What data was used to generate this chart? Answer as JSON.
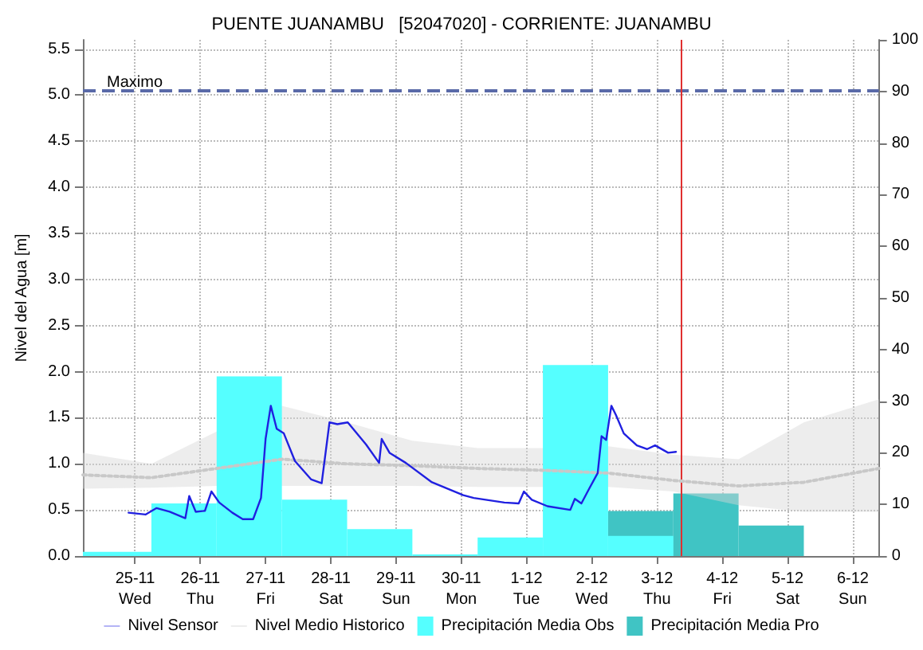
{
  "chart_data": {
    "type": "line",
    "title": "PUENTE JUANAMBU   [52047020] - CORRIENTE: JUANAMBU",
    "ylabel": "Nivel del Agua [m]",
    "xlim": [
      "--11-24T04:48",
      "--12-06T09:36"
    ],
    "xticks": [
      {
        "value": "--11-25",
        "label": "25-11\nWed"
      },
      {
        "value": "--11-26",
        "label": "26-11\nThu"
      },
      {
        "value": "--11-27",
        "label": "27-11\nFri"
      },
      {
        "value": "--11-28",
        "label": "28-11\nSat"
      },
      {
        "value": "--11-29",
        "label": "29-11\nSun"
      },
      {
        "value": "--11-30",
        "label": "30-11\nMon"
      },
      {
        "value": "--12-01",
        "label": "1-12\nTue"
      },
      {
        "value": "--12-02",
        "label": "2-12\nWed"
      },
      {
        "value": "--12-03",
        "label": "3-12\nThu"
      },
      {
        "value": "--12-04",
        "label": "4-12\nFri"
      },
      {
        "value": "--12-05",
        "label": "5-12\nSat"
      },
      {
        "value": "--12-06",
        "label": "6-12\nSun"
      }
    ],
    "ylim": [
      0,
      5.6
    ],
    "yticks": [
      {
        "value": 0,
        "label": "0.0"
      },
      0.5,
      {
        "value": 1,
        "label": "1.0"
      },
      1.5,
      {
        "value": 2,
        "label": "2.0"
      },
      2.5,
      {
        "value": 3,
        "label": "3.0"
      },
      3.5,
      {
        "value": 4,
        "label": "4.0"
      },
      4.5,
      {
        "value": 5,
        "label": "5.0"
      },
      5.5
    ],
    "y2lim": [
      0,
      100
    ],
    "y2ticks": [
      0,
      10,
      20,
      30,
      40,
      50,
      60,
      70,
      80,
      90,
      100
    ],
    "grid": true,
    "legend": "bottom",
    "marker": "none",
    "ref_lines": [
      {
        "axis": "y",
        "value": 5.05,
        "label": "Maximo",
        "color": "#5a6aa8",
        "line_style": "dashed"
      },
      {
        "axis": "x",
        "value": "--12-03T09:07",
        "label": null,
        "color": "#e03030",
        "line_style": "solid"
      }
    ],
    "series": [
      {
        "name": "Nivel Sensor",
        "color": "#2020e0",
        "line_style": "solid",
        "x": [
          "--11-24T21:36",
          "--11-25T03:50",
          "--11-25T07:55",
          "--11-25T12:43",
          "--11-25T18:29",
          "--11-25T19:55",
          "--11-25T22:19",
          "--11-26T01:41",
          "--11-26T04:05",
          "--11-26T06:58",
          "--11-26T11:46",
          "--11-26T15:36",
          "--11-26T19:26",
          "--11-26T22:19",
          "--11-27T00:00",
          "--11-27T01:55",
          "--11-27T04:05",
          "--11-27T06:43",
          "--11-27T10:48",
          "--11-27T16:48",
          "--11-27T20:38",
          "--11-27T23:31",
          "--11-28T02:24",
          "--11-28T06:14",
          "--11-28T12:58",
          "--11-28T17:46",
          "--11-28T18:43",
          "--11-28T21:36",
          "--11-29T03:36",
          "--11-29T13:12",
          "--11-30T00:43",
          "--11-30T04:34",
          "--11-30T15:50",
          "--11-30T21:07",
          "--11-30T23:02",
          "--12-01T01:55",
          "--12-01T07:41",
          "--12-01T16:05",
          "--12-01T17:46",
          "--12-01T20:10",
          "--12-01T23:02",
          "--12-02T02:10",
          "--12-02T03:36",
          "--12-02T05:17",
          "--12-02T07:12",
          "--12-02T08:53",
          "--12-02T11:46",
          "--12-02T16:34",
          "--12-02T20:24",
          "--12-02T23:17",
          "--12-03T04:05",
          "--12-03T06:58"
        ],
        "values": [
          0.47,
          0.45,
          0.52,
          0.48,
          0.41,
          0.65,
          0.48,
          0.49,
          0.7,
          0.58,
          0.47,
          0.4,
          0.4,
          0.63,
          1.27,
          1.63,
          1.38,
          1.33,
          1.03,
          0.83,
          0.79,
          1.45,
          1.43,
          1.45,
          1.21,
          1.01,
          1.27,
          1.12,
          1.01,
          0.8,
          0.66,
          0.63,
          0.58,
          0.57,
          0.7,
          0.61,
          0.54,
          0.5,
          0.62,
          0.57,
          0.73,
          0.9,
          1.3,
          1.26,
          1.63,
          1.53,
          1.33,
          1.2,
          1.16,
          1.2,
          1.12,
          1.13
        ]
      },
      {
        "name": "Nivel Medio Historico",
        "color": "#c8c8c8",
        "line_style": "dotted",
        "x": [
          "--11-24T04:48",
          "--11-25T06:00",
          "--11-26T06:00",
          "--11-27T06:00",
          "--11-28T06:00",
          "--11-29T06:00",
          "--11-30T06:00",
          "--12-01T06:00",
          "--12-02T06:00",
          "--12-03T06:00",
          "--12-04T06:00",
          "--12-05T06:00",
          "--12-06T09:36"
        ],
        "values": [
          0.88,
          0.85,
          0.95,
          1.05,
          1.0,
          0.98,
          0.95,
          0.93,
          0.9,
          0.82,
          0.76,
          0.8,
          0.95
        ],
        "upper": [
          1.12,
          1.0,
          1.35,
          1.63,
          1.45,
          1.25,
          1.17,
          1.17,
          1.19,
          1.1,
          1.05,
          1.45,
          1.7
        ],
        "lower": [
          0.73,
          0.74,
          0.76,
          0.76,
          0.76,
          0.76,
          0.75,
          0.75,
          0.75,
          0.7,
          0.55,
          0.48,
          0.48
        ]
      },
      {
        "name": "Precipitación Media Obs",
        "type": "histogram",
        "axis": "y2",
        "color": "#55ffff",
        "bins": [
          "--11-24T04:48",
          "--11-25T06:00",
          "--11-26T06:00",
          "--11-27T06:00",
          "--11-28T06:00",
          "--11-29T06:00",
          "--11-30T06:00",
          "--12-01T06:00",
          "--12-02T06:00",
          "--12-03T06:00"
        ],
        "values": [
          0.8,
          10.2,
          34.8,
          10.9,
          5.2,
          0.3,
          3.6,
          37.0,
          3.9
        ]
      },
      {
        "name": "Precipitación Media Pro",
        "type": "histogram",
        "axis": "y2",
        "color": "#40c4c4",
        "bins": [
          "--12-02T06:00",
          "--12-03T06:00",
          "--12-04T06:00",
          "--12-05T06:00"
        ],
        "values": [
          8.7,
          12.1,
          5.9
        ]
      }
    ]
  }
}
